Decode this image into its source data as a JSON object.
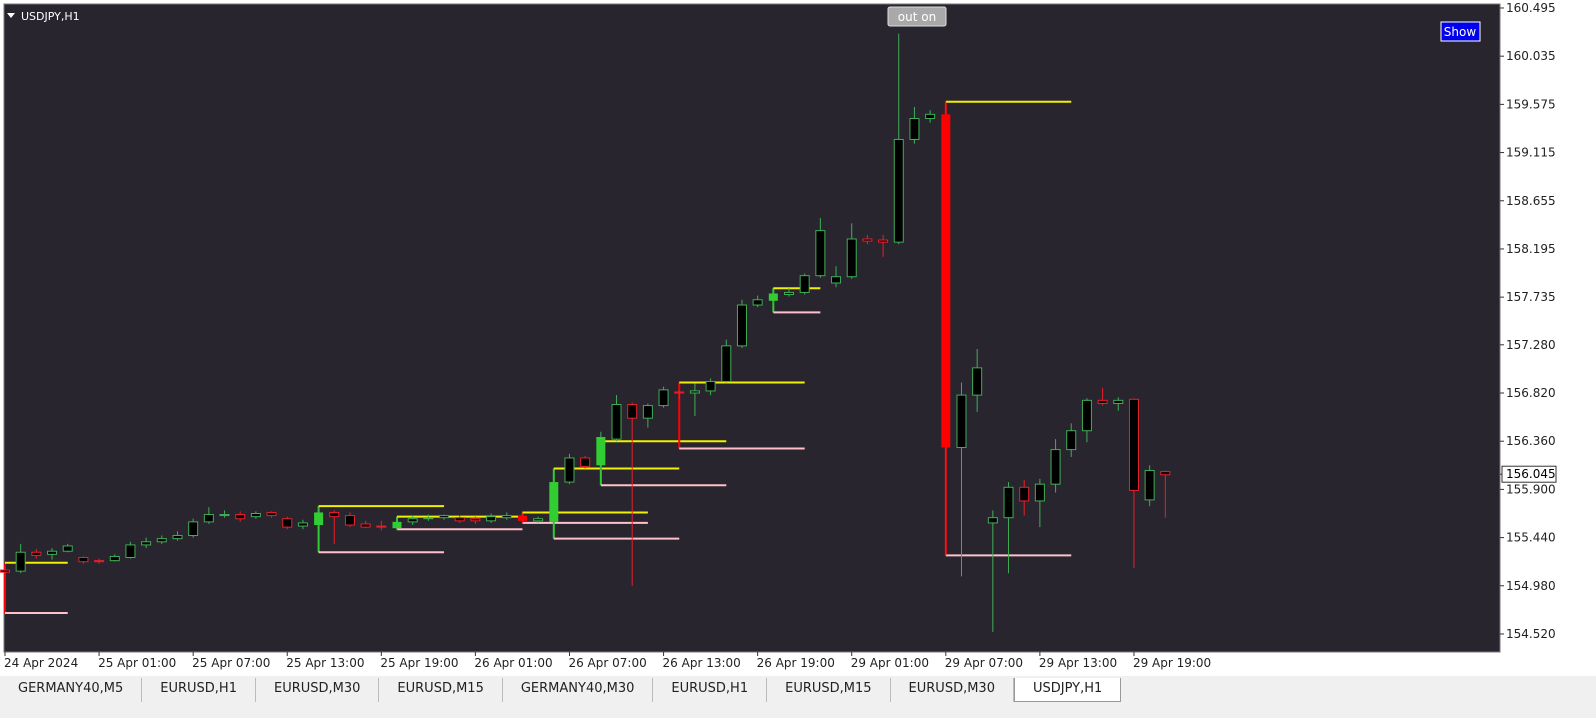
{
  "chart_data": {
    "type": "candlestick",
    "title": "USDJPY,H1",
    "buttons": [
      "out on",
      "Show"
    ],
    "categories": [
      "24 Apr 2024",
      null,
      null,
      null,
      null,
      null,
      "25 Apr 01:00",
      null,
      null,
      null,
      null,
      null,
      "25 Apr 07:00",
      null,
      null,
      null,
      null,
      null,
      "25 Apr 13:00",
      null,
      null,
      null,
      null,
      null,
      "25 Apr 19:00",
      null,
      null,
      null,
      null,
      null,
      "26 Apr 01:00",
      null,
      null,
      null,
      null,
      null,
      "26 Apr 07:00",
      null,
      null,
      null,
      null,
      null,
      "26 Apr 13:00",
      null,
      null,
      null,
      null,
      null,
      "26 Apr 19:00",
      null,
      null,
      null,
      null,
      null,
      "29 Apr 01:00",
      null,
      null,
      null,
      null,
      null,
      "29 Apr 07:00",
      null,
      null,
      null,
      null,
      null,
      "29 Apr 13:00",
      null,
      null,
      null,
      null,
      null,
      "29 Apr 19:00",
      null,
      null
    ],
    "open": [
      155.13,
      155.12,
      155.3,
      155.28,
      155.31,
      155.25,
      155.22,
      155.22,
      155.25,
      155.37,
      155.4,
      155.43,
      155.46,
      155.59,
      155.66,
      155.66,
      155.64,
      155.68,
      155.62,
      155.55,
      155.56,
      155.68,
      155.65,
      155.57,
      155.55,
      155.53,
      155.59,
      155.62,
      155.63,
      155.63,
      155.62,
      155.6,
      155.63,
      155.65,
      155.6,
      155.59,
      155.97,
      156.2,
      156.13,
      156.38,
      156.71,
      156.58,
      156.7,
      156.83,
      156.82,
      156.84,
      156.93,
      157.27,
      157.66,
      157.7,
      157.76,
      157.78,
      157.94,
      157.87,
      157.93,
      158.29,
      158.28,
      158.26,
      159.24,
      159.44,
      159.48,
      156.3,
      156.8,
      155.58,
      155.63,
      155.92,
      155.79,
      155.95,
      156.28,
      156.46,
      156.75,
      156.72,
      156.76,
      155.8,
      156.07
    ],
    "high": [
      155.16,
      155.38,
      155.33,
      155.34,
      155.38,
      155.26,
      155.24,
      155.28,
      155.4,
      155.44,
      155.46,
      155.5,
      155.62,
      155.73,
      155.7,
      155.69,
      155.69,
      155.69,
      155.64,
      155.61,
      155.72,
      155.7,
      155.68,
      155.6,
      155.6,
      155.62,
      155.65,
      155.66,
      155.66,
      155.65,
      155.64,
      155.67,
      155.68,
      155.67,
      155.64,
      155.99,
      156.24,
      156.22,
      156.45,
      156.8,
      156.73,
      156.72,
      156.88,
      156.85,
      156.91,
      156.96,
      157.33,
      157.71,
      157.75,
      157.8,
      157.82,
      157.96,
      158.49,
      158.03,
      158.44,
      158.33,
      158.33,
      160.25,
      159.55,
      159.52,
      159.6,
      156.92,
      157.24,
      155.7,
      155.97,
      155.99,
      156.0,
      156.38,
      156.53,
      156.77,
      156.87,
      156.78,
      156.77,
      156.13,
      156.08
    ],
    "low": [
      155.1,
      155.1,
      155.24,
      155.23,
      155.3,
      155.19,
      155.19,
      155.21,
      155.24,
      155.34,
      155.38,
      155.41,
      155.44,
      155.57,
      155.63,
      155.59,
      155.62,
      155.63,
      155.52,
      155.52,
      155.55,
      155.38,
      155.54,
      155.53,
      155.51,
      155.51,
      155.56,
      155.6,
      155.61,
      155.58,
      155.57,
      155.58,
      155.61,
      155.58,
      155.58,
      155.58,
      155.95,
      156.1,
      156.07,
      156.36,
      154.98,
      156.49,
      156.68,
      156.76,
      156.6,
      156.8,
      156.92,
      157.25,
      157.64,
      157.66,
      157.74,
      157.76,
      157.92,
      157.83,
      157.91,
      158.24,
      158.12,
      158.24,
      159.2,
      159.4,
      155.27,
      155.07,
      156.64,
      154.54,
      155.1,
      155.65,
      155.54,
      155.87,
      156.21,
      156.35,
      156.7,
      156.65,
      155.15,
      155.74,
      155.63
    ],
    "close": [
      155.11,
      155.3,
      155.27,
      155.31,
      155.36,
      155.21,
      155.21,
      155.26,
      155.37,
      155.4,
      155.43,
      155.46,
      155.59,
      155.66,
      155.66,
      155.62,
      155.67,
      155.65,
      155.54,
      155.58,
      155.68,
      155.64,
      155.56,
      155.54,
      155.54,
      155.59,
      155.62,
      155.63,
      155.65,
      155.6,
      155.6,
      155.64,
      155.65,
      155.6,
      155.62,
      155.97,
      156.2,
      156.12,
      156.4,
      156.71,
      156.58,
      156.7,
      156.85,
      156.82,
      156.84,
      156.93,
      157.27,
      157.66,
      157.71,
      157.77,
      157.78,
      157.94,
      158.37,
      157.93,
      158.29,
      158.27,
      158.26,
      159.24,
      159.44,
      159.48,
      156.3,
      156.8,
      157.06,
      155.63,
      155.92,
      155.79,
      155.95,
      156.28,
      156.46,
      156.75,
      156.72,
      156.75,
      155.89,
      156.08,
      156.04
    ],
    "highlight": [
      20,
      25,
      33,
      35,
      38,
      49,
      60
    ],
    "levels": [
      {
        "start": 0,
        "end": 4,
        "high": 155.2,
        "low": 154.72
      },
      {
        "start": 20,
        "end": 28,
        "high": 155.74,
        "low": 155.3
      },
      {
        "start": 25,
        "end": 33,
        "high": 155.64,
        "low": 155.52
      },
      {
        "start": 33,
        "end": 41,
        "high": 155.68,
        "low": 155.58
      },
      {
        "start": 35,
        "end": 43,
        "high": 156.1,
        "low": 155.43
      },
      {
        "start": 38,
        "end": 46,
        "high": 156.36,
        "low": 155.94
      },
      {
        "start": 43,
        "end": 51,
        "high": 156.92,
        "low": 156.29
      },
      {
        "start": 49,
        "end": 52,
        "high": 157.82,
        "low": 157.59
      },
      {
        "start": 60,
        "end": 68,
        "high": 159.6,
        "low": 155.27
      }
    ],
    "colors": {
      "bull": "#3fae55",
      "bear": "#e8202a",
      "bull_fill": "#32cd32",
      "bear_fill": "#ff0000",
      "level_high": "#f0f000",
      "level_low": "#ffc0cb"
    },
    "last_price": {
      "value": 156.045,
      "label": "156.045"
    },
    "ylim": [
      154.348,
      160.533
    ],
    "yticks": [
      {
        "value": 160.495,
        "label": "160.495"
      },
      {
        "value": 160.035,
        "label": "160.035"
      },
      {
        "value": 159.575,
        "label": "159.575"
      },
      {
        "value": 159.115,
        "label": "159.115"
      },
      {
        "value": 158.655,
        "label": "158.655"
      },
      {
        "value": 158.195,
        "label": "158.195"
      },
      {
        "value": 157.735,
        "label": "157.735"
      },
      {
        "value": 157.28,
        "label": "157.280"
      },
      {
        "value": 156.82,
        "label": "156.820"
      },
      {
        "value": 156.36,
        "label": "156.360"
      },
      {
        "value": 155.9,
        "label": "155.900"
      },
      {
        "value": 155.44,
        "label": "155.440"
      },
      {
        "value": 154.98,
        "label": "154.980"
      },
      {
        "value": 154.52,
        "label": "154.520"
      }
    ]
  },
  "tabs": {
    "items": [
      "GERMANY40,M5",
      "EURUSD,H1",
      "EURUSD,M30",
      "EURUSD,M15",
      "GERMANY40,M30",
      "EURUSD,H1",
      "EURUSD,M15",
      "EURUSD,M30",
      "USDJPY,H1"
    ],
    "active": 8
  }
}
